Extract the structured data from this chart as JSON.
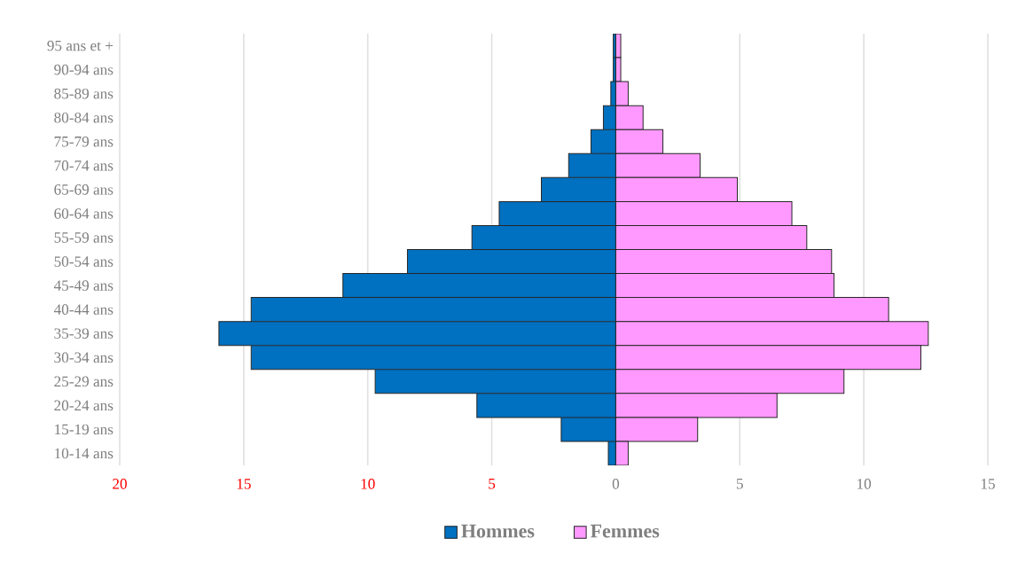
{
  "chart_data": {
    "type": "bar",
    "orientation": "horizontal",
    "categories": [
      "95 ans et +",
      "90-94 ans",
      "85-89 ans",
      "80-84 ans",
      "75-79 ans",
      "70-74 ans",
      "65-69 ans",
      "60-64 ans",
      "55-59 ans",
      "50-54 ans",
      "45-49 ans",
      "40-44 ans",
      "35-39 ans",
      "30-34 ans",
      "25-29 ans",
      "20-24 ans",
      "15-19 ans",
      "10-14 ans"
    ],
    "series": [
      {
        "name": "Hommes",
        "color": "#0070c0",
        "values": [
          -0.1,
          -0.1,
          -0.2,
          -0.5,
          -1.0,
          -1.9,
          -3.0,
          -4.7,
          -5.8,
          -8.4,
          -11.0,
          -14.7,
          -16.0,
          -14.7,
          -9.7,
          -5.6,
          -2.2,
          -0.3
        ]
      },
      {
        "name": "Femmes",
        "color": "#ff99ff",
        "values": [
          0.2,
          0.2,
          0.5,
          1.1,
          1.9,
          3.4,
          4.9,
          7.1,
          7.7,
          8.7,
          8.8,
          11.0,
          12.6,
          12.3,
          9.2,
          6.5,
          3.3,
          0.5
        ]
      }
    ],
    "xlim": [
      -20,
      15
    ],
    "xticks": [
      {
        "value": -20,
        "label": "20"
      },
      {
        "value": -15,
        "label": "15"
      },
      {
        "value": -10,
        "label": "10"
      },
      {
        "value": -5,
        "label": "5"
      },
      0,
      5,
      10,
      15
    ],
    "stacked": true,
    "grid": "x",
    "legend": "bottom"
  }
}
